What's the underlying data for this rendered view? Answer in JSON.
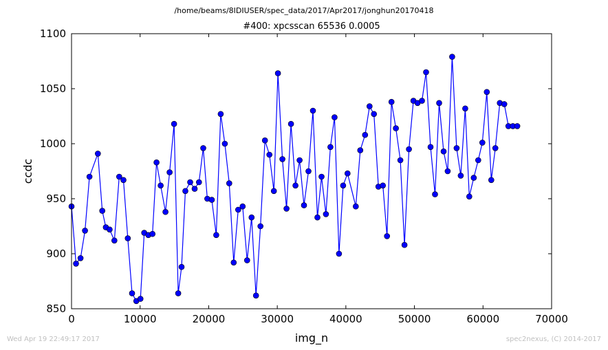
{
  "suptitle": "/home/beams/8IDIUSER/spec_data/2017/Apr2017/jonghun20170418",
  "footer": {
    "timestamp": "Wed Apr 19 22:49:17 2017",
    "credit": "spec2nexus, (C) 2014-2017"
  },
  "chart_data": {
    "type": "line",
    "title": "#400: xpcsscan 65536 0.0005",
    "xlabel": "img_n",
    "ylabel": "ccdc",
    "xlim": [
      0,
      70000
    ],
    "ylim": [
      850,
      1100
    ],
    "xticks": [
      0,
      10000,
      20000,
      30000,
      40000,
      50000,
      60000,
      70000
    ],
    "yticks": [
      850,
      900,
      950,
      1000,
      1050,
      1100
    ],
    "grid": false,
    "legend": "none",
    "line_color": "#0000ff",
    "marker_color": "#0000ff",
    "series": [
      {
        "x": [
          0,
          655,
          1310,
          1965,
          2620,
          3840,
          4480,
          5000,
          5560,
          6250,
          6950,
          7570,
          8200,
          8830,
          9450,
          10050,
          10600,
          11200,
          11800,
          12400,
          13000,
          13700,
          14300,
          14950,
          15550,
          16050,
          16600,
          17300,
          17950,
          18580,
          19200,
          19800,
          20450,
          21100,
          21750,
          22350,
          23000,
          23650,
          24300,
          24950,
          25600,
          26250,
          26900,
          27550,
          28200,
          28850,
          29500,
          30100,
          30750,
          31350,
          32000,
          32650,
          33250,
          33900,
          34550,
          35200,
          35850,
          36450,
          37100,
          37750,
          38350,
          39000,
          39600,
          40250,
          41450,
          42100,
          42800,
          43450,
          44100,
          44750,
          45400,
          46000,
          46650,
          47300,
          47950,
          48550,
          49200,
          49850,
          50450,
          51100,
          51700,
          52350,
          53000,
          53600,
          54250,
          54850,
          55500,
          56150,
          56750,
          57400,
          58000,
          58650,
          59300,
          59900,
          60550,
          61200,
          61800,
          62450,
          63100,
          63700,
          64350,
          65000
        ],
        "y": [
          943,
          891,
          896,
          921,
          970,
          991,
          939,
          924,
          922,
          912,
          970,
          967,
          914,
          864,
          857,
          859,
          919,
          917,
          918,
          983,
          962,
          938,
          974,
          1018,
          864,
          888,
          957,
          965,
          959,
          965,
          996,
          950,
          949,
          917,
          1027,
          1000,
          964,
          892,
          940,
          943,
          894,
          933,
          862,
          925,
          1003,
          990,
          957,
          1064,
          986,
          941,
          1018,
          962,
          985,
          944,
          975,
          1030,
          933,
          970,
          936,
          997,
          1024,
          900,
          962,
          973,
          943,
          994,
          1008,
          1034,
          1027,
          961,
          962,
          916,
          1038,
          1014,
          985,
          908,
          995,
          1039,
          1037,
          1039,
          1065,
          997,
          954,
          1037,
          993,
          975,
          1079,
          996,
          971,
          1032,
          952,
          969,
          985,
          1001,
          1047,
          967,
          996,
          1037,
          1036,
          1016,
          1016,
          1016
        ]
      }
    ]
  }
}
